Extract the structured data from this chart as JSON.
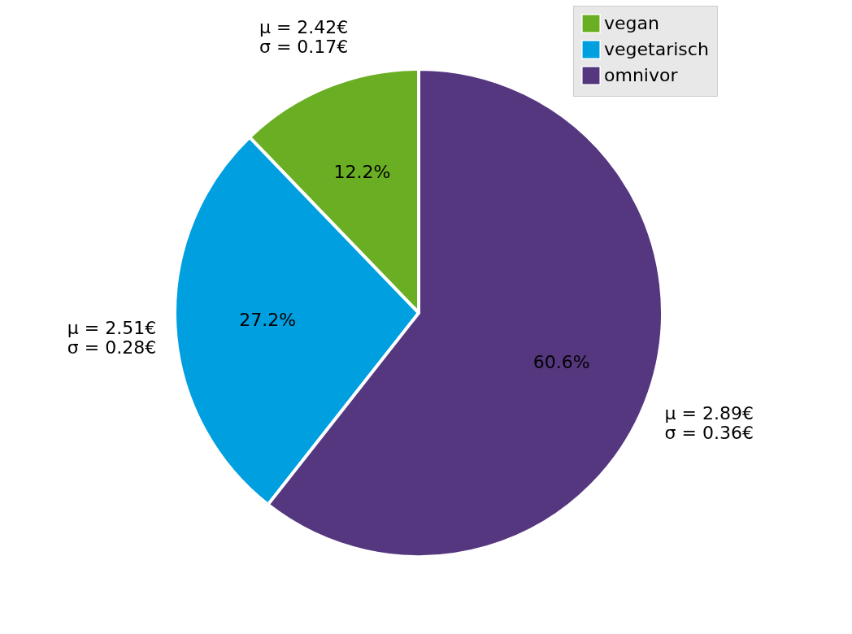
{
  "chart_data": {
    "type": "pie",
    "categories": [
      "vegan",
      "vegetarisch",
      "omnivor"
    ],
    "values": [
      12.2,
      27.2,
      60.6
    ],
    "colors": [
      "#6aaf23",
      "#009fe0",
      "#55377f"
    ],
    "value_labels": [
      "12.2%",
      "27.2%",
      "60.6%"
    ],
    "annotations": [
      "μ = 2.42€\nσ = 0.17€",
      "μ = 2.51€\nσ = 0.28€",
      "μ = 2.89€\nσ = 0.36€"
    ],
    "legend": "top right"
  }
}
